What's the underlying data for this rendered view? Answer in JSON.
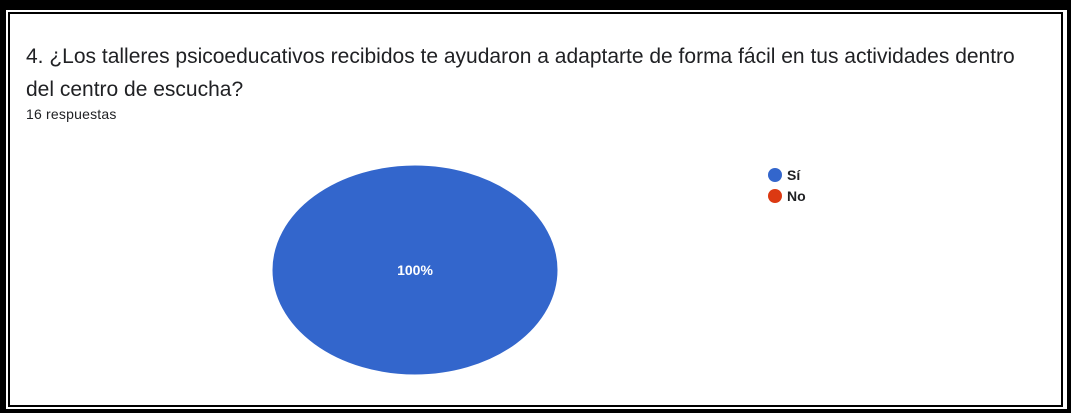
{
  "form_response": {
    "question": "4. ¿Los talleres psicoeducativos recibidos te ayudaron a adaptarte de forma fácil en tus actividades dentro del centro de escucha?",
    "response_count_label": "16 respuestas"
  },
  "chart_data": {
    "type": "pie",
    "title": "",
    "total_responses": 16,
    "slices": [
      {
        "label": "Sí",
        "value": 100,
        "display_label": "100%",
        "color": "#3366cc"
      },
      {
        "label": "No",
        "value": 0,
        "display_label": "",
        "color": "#dc3912"
      }
    ],
    "legend_position": "right"
  }
}
